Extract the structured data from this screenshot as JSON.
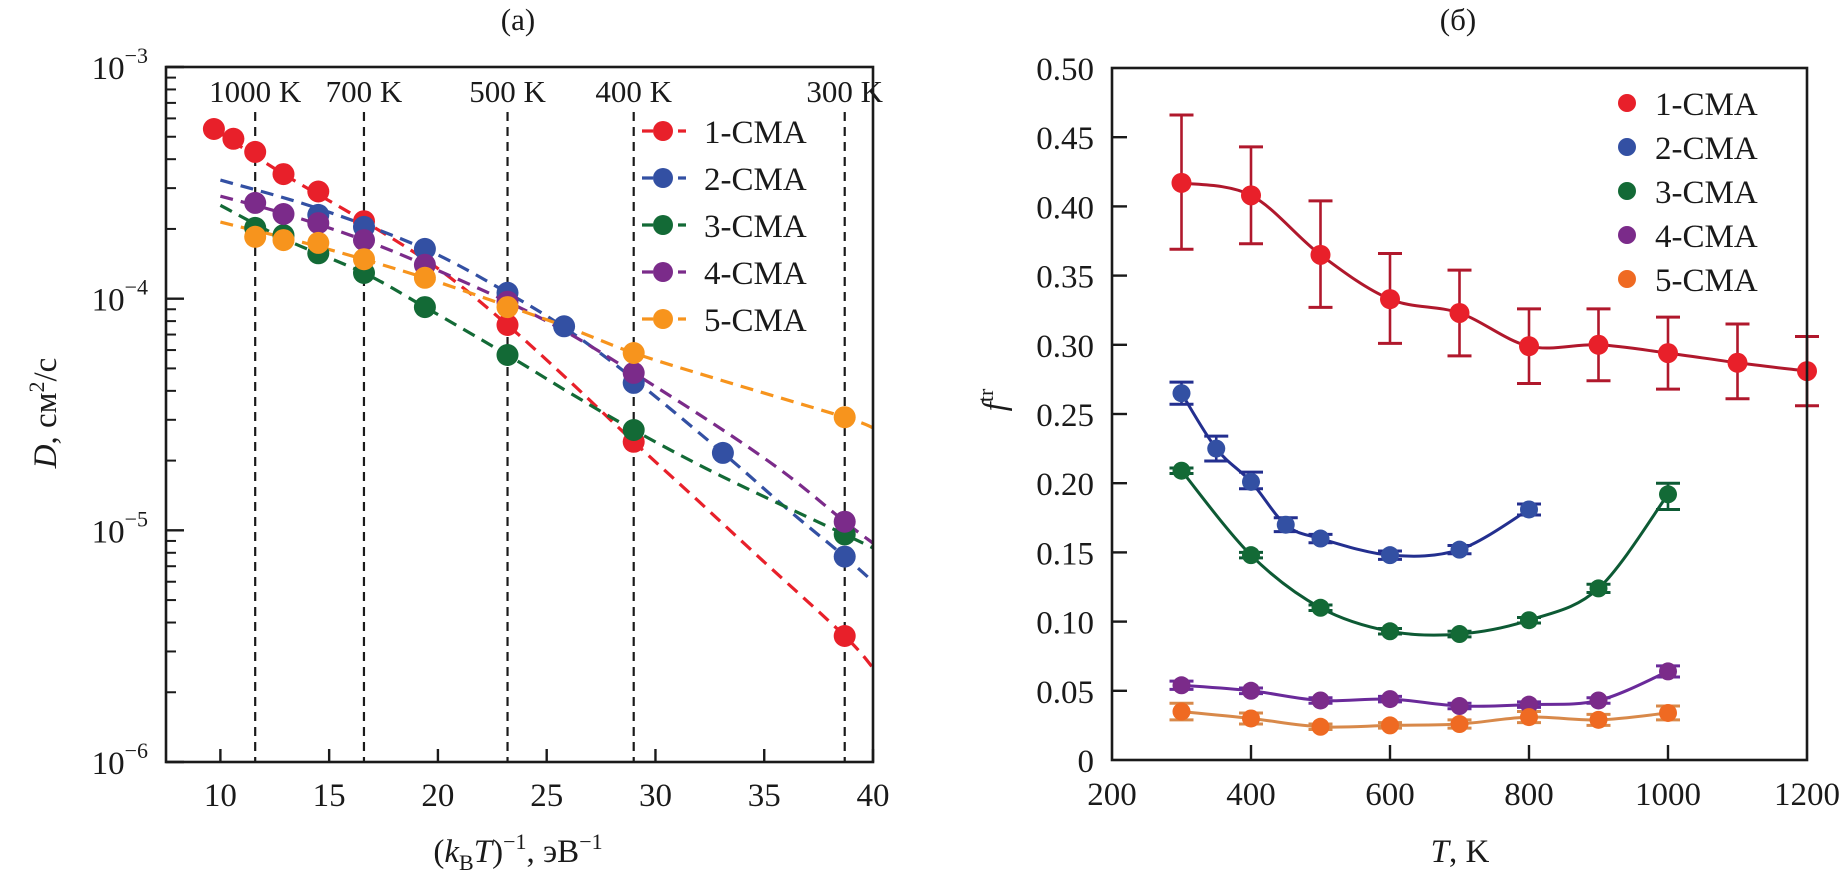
{
  "colors": {
    "1-CMA": "#e8202a",
    "2-CMA": "#3350a3",
    "3-CMA": "#136a36",
    "4-CMA": "#7b2b8a",
    "5-CMA": "#f7941d",
    "5-CMA-b": "#ef6a22",
    "1-CMA-b-line": "#b0182c",
    "2-CMA-b-line": "#232f8f",
    "3-CMA-b-line": "#0d5a34",
    "4-CMA-b-line": "#6a2a9a",
    "5-CMA-b-line": "#d8894a",
    "axis": "#1a1a1a"
  },
  "chart_data": [
    {
      "id": "a",
      "type": "scatter",
      "title": "(a)",
      "xlabel": "(k_B T)^-1, эВ^-1",
      "xlabel_parts": {
        "open": "(",
        "k": "k",
        "sub": "B",
        "T": "T",
        "close": ")",
        "sup1": "−1",
        "unit": ", эВ",
        "sup2": "−1"
      },
      "ylabel": "D, см²/с",
      "ylabel_parts": {
        "D": "D",
        "unit": ", см",
        "sup": "2",
        "rest": "/с"
      },
      "yscale": "log",
      "xlim": [
        7.5,
        40
      ],
      "ylim": [
        1e-06,
        0.001
      ],
      "xticks": [
        10,
        15,
        20,
        25,
        30,
        35,
        40
      ],
      "xtick_labels": [
        "10",
        "15",
        "20",
        "25",
        "30",
        "35",
        "40"
      ],
      "yticks": [
        1e-06,
        1e-05,
        0.0001,
        0.001
      ],
      "ytick_labels": [
        {
          "base": "10",
          "exp": "−6"
        },
        {
          "base": "10",
          "exp": "−5"
        },
        {
          "base": "10",
          "exp": "−4"
        },
        {
          "base": "10",
          "exp": "−3"
        }
      ],
      "grid": false,
      "legend_position": "top-right",
      "reference_lines": [
        {
          "x": 11.6,
          "label": "1000 K"
        },
        {
          "x": 16.6,
          "label": "700 K"
        },
        {
          "x": 23.2,
          "label": "500 K"
        },
        {
          "x": 29.0,
          "label": "400 K"
        },
        {
          "x": 38.7,
          "label": "300 K"
        }
      ],
      "series": [
        {
          "name": "1-CMA",
          "points": [
            [
              9.7,
              0.00054
            ],
            [
              10.6,
              0.00049
            ],
            [
              11.6,
              0.00043
            ],
            [
              12.9,
              0.000345
            ],
            [
              14.5,
              0.00029
            ],
            [
              16.6,
              0.000216
            ],
            [
              23.2,
              7.7e-05
            ],
            [
              29.0,
              2.41e-05
            ],
            [
              38.7,
              3.5e-06
            ]
          ],
          "fit": [
            [
              9.7,
              0.00054
            ],
            [
              12.9,
              0.000345
            ],
            [
              16.6,
              0.000216
            ],
            [
              20.0,
              0.000135
            ],
            [
              23.2,
              7.7e-05
            ],
            [
              26.0,
              4.45e-05
            ],
            [
              29.0,
              2.41e-05
            ],
            [
              32.0,
              1.33e-05
            ],
            [
              35.0,
              7.3e-06
            ],
            [
              38.7,
              3.5e-06
            ],
            [
              40.0,
              2.55e-06
            ]
          ]
        },
        {
          "name": "2-CMA",
          "points": [
            [
              14.5,
              0.00023
            ],
            [
              16.6,
              0.000204
            ],
            [
              19.4,
              0.000164
            ],
            [
              23.2,
              0.000106
            ],
            [
              25.8,
              7.6e-05
            ],
            [
              29.0,
              4.33e-05
            ],
            [
              33.1,
              2.16e-05
            ],
            [
              38.7,
              7.7e-06
            ]
          ],
          "fit": [
            [
              10.0,
              0.000325
            ],
            [
              14.5,
              0.000245
            ],
            [
              19.4,
              0.000164
            ],
            [
              23.2,
              0.000106
            ],
            [
              26.0,
              7.3e-05
            ],
            [
              29.0,
              4.5e-05
            ],
            [
              33.1,
              2.16e-05
            ],
            [
              36.0,
              1.25e-05
            ],
            [
              38.7,
              7.7e-06
            ],
            [
              40.0,
              6e-06
            ]
          ]
        },
        {
          "name": "3-CMA",
          "points": [
            [
              11.6,
              0.000202
            ],
            [
              12.9,
              0.000188
            ],
            [
              14.5,
              0.000157
            ],
            [
              16.6,
              0.000129
            ],
            [
              19.4,
              9.2e-05
            ],
            [
              23.2,
              5.71e-05
            ],
            [
              29.0,
              2.71e-05
            ],
            [
              38.7,
              9.6e-06
            ]
          ],
          "fit": [
            [
              10.0,
              0.000253
            ],
            [
              13.0,
              0.00018
            ],
            [
              16.6,
              0.000129
            ],
            [
              19.4,
              9.2e-05
            ],
            [
              23.2,
              5.71e-05
            ],
            [
              26.0,
              3.95e-05
            ],
            [
              29.0,
              2.71e-05
            ],
            [
              33.0,
              1.72e-05
            ],
            [
              38.7,
              9.6e-06
            ],
            [
              40.0,
              8.4e-06
            ]
          ]
        },
        {
          "name": "4-CMA",
          "points": [
            [
              11.6,
              0.000259
            ],
            [
              12.9,
              0.000232
            ],
            [
              14.5,
              0.000212
            ],
            [
              16.6,
              0.000179
            ],
            [
              19.4,
              0.00014
            ],
            [
              23.2,
              9.7e-05
            ],
            [
              29.0,
              4.78e-05
            ],
            [
              38.7,
              1.09e-05
            ]
          ],
          "fit": [
            [
              10.0,
              0.000277
            ],
            [
              13.0,
              0.000232
            ],
            [
              16.6,
              0.000179
            ],
            [
              19.4,
              0.00014
            ],
            [
              23.2,
              9.7e-05
            ],
            [
              26.0,
              7.1e-05
            ],
            [
              29.0,
              4.78e-05
            ],
            [
              33.0,
              2.75e-05
            ],
            [
              36.0,
              1.75e-05
            ],
            [
              38.7,
              1.09e-05
            ],
            [
              40.0,
              8.8e-06
            ]
          ]
        },
        {
          "name": "5-CMA",
          "points": [
            [
              11.6,
              0.000185
            ],
            [
              12.9,
              0.000179
            ],
            [
              14.5,
              0.000174
            ],
            [
              16.6,
              0.000148
            ],
            [
              19.4,
              0.000123
            ],
            [
              23.2,
              9.2e-05
            ],
            [
              29.0,
              5.83e-05
            ],
            [
              38.7,
              3.08e-05
            ]
          ],
          "fit": [
            [
              10.0,
              0.000214
            ],
            [
              14.5,
              0.000168
            ],
            [
              19.4,
              0.000123
            ],
            [
              23.2,
              9.3e-05
            ],
            [
              26.0,
              7.5e-05
            ],
            [
              29.0,
              5.83e-05
            ],
            [
              33.0,
              4.45e-05
            ],
            [
              38.7,
              3.08e-05
            ],
            [
              40.0,
              2.77e-05
            ]
          ]
        }
      ]
    },
    {
      "id": "b",
      "type": "line",
      "title": "(б)",
      "xlabel": "T, K",
      "xlabel_parts": {
        "T": "T",
        "unit": ", K"
      },
      "ylabel": "f^tr",
      "ylabel_parts": {
        "f": "f",
        "sup": "tr"
      },
      "xlim": [
        200,
        1200
      ],
      "ylim": [
        0,
        0.5
      ],
      "xticks": [
        200,
        400,
        600,
        800,
        1000,
        1200
      ],
      "xtick_labels": [
        "200",
        "400",
        "600",
        "800",
        "1000",
        "1200"
      ],
      "yticks": [
        0,
        0.05,
        0.1,
        0.15,
        0.2,
        0.25,
        0.3,
        0.35,
        0.4,
        0.45,
        0.5
      ],
      "ytick_labels": [
        "0",
        "0.05",
        "0.10",
        "0.15",
        "0.20",
        "0.25",
        "0.30",
        "0.35",
        "0.40",
        "0.45",
        "0.50"
      ],
      "grid": false,
      "legend_position": "top-right",
      "series": [
        {
          "name": "1-CMA",
          "x": [
            300,
            400,
            500,
            600,
            700,
            800,
            900,
            1000,
            1100,
            1200
          ],
          "y": [
            0.417,
            0.408,
            0.365,
            0.333,
            0.323,
            0.299,
            0.3,
            0.294,
            0.287,
            0.281
          ],
          "err_low": [
            0.369,
            0.373,
            0.327,
            0.301,
            0.292,
            0.272,
            0.274,
            0.268,
            0.261,
            0.256
          ],
          "err_high": [
            0.466,
            0.443,
            0.404,
            0.366,
            0.354,
            0.326,
            0.326,
            0.32,
            0.315,
            0.306
          ]
        },
        {
          "name": "2-CMA",
          "x": [
            300,
            350,
            400,
            450,
            500,
            600,
            700,
            800
          ],
          "y": [
            0.265,
            0.225,
            0.201,
            0.17,
            0.16,
            0.148,
            0.152,
            0.181
          ],
          "err_low": [
            0.257,
            0.216,
            0.196,
            0.165,
            0.157,
            0.145,
            0.149,
            0.177
          ],
          "err_high": [
            0.273,
            0.234,
            0.208,
            0.175,
            0.163,
            0.151,
            0.155,
            0.185
          ]
        },
        {
          "name": "3-CMA",
          "x": [
            300,
            400,
            500,
            600,
            700,
            800,
            900,
            1000
          ],
          "y": [
            0.209,
            0.148,
            0.11,
            0.093,
            0.091,
            0.101,
            0.124,
            0.192
          ],
          "err_low": [
            0.207,
            0.146,
            0.108,
            0.091,
            0.089,
            0.099,
            0.121,
            0.181
          ],
          "err_high": [
            0.211,
            0.15,
            0.112,
            0.095,
            0.093,
            0.103,
            0.127,
            0.2
          ]
        },
        {
          "name": "4-CMA",
          "x": [
            300,
            400,
            500,
            600,
            700,
            800,
            900,
            1000
          ],
          "y": [
            0.054,
            0.05,
            0.043,
            0.044,
            0.039,
            0.04,
            0.043,
            0.064
          ],
          "err_low": [
            0.051,
            0.048,
            0.041,
            0.042,
            0.037,
            0.038,
            0.041,
            0.06
          ],
          "err_high": [
            0.057,
            0.052,
            0.045,
            0.046,
            0.041,
            0.042,
            0.045,
            0.068
          ]
        },
        {
          "name": "5-CMA",
          "x": [
            300,
            400,
            500,
            600,
            700,
            800,
            900,
            1000
          ],
          "y": [
            0.035,
            0.03,
            0.024,
            0.025,
            0.026,
            0.031,
            0.029,
            0.034
          ],
          "err_low": [
            0.029,
            0.026,
            0.022,
            0.023,
            0.023,
            0.027,
            0.025,
            0.029
          ],
          "err_high": [
            0.041,
            0.034,
            0.026,
            0.027,
            0.029,
            0.035,
            0.033,
            0.039
          ]
        }
      ]
    }
  ]
}
